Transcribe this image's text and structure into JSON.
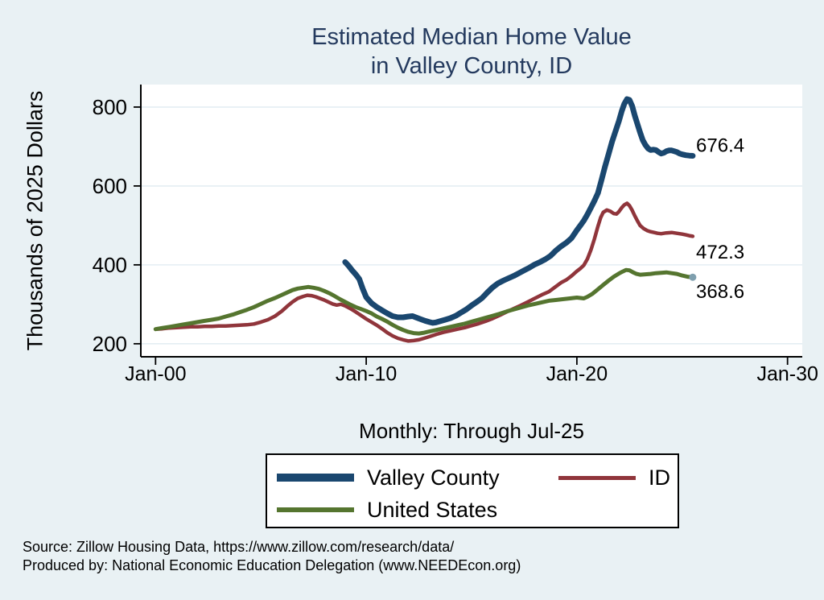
{
  "title": {
    "line1": "Estimated Median Home Value",
    "line2": "in Valley County, ID"
  },
  "y_axis_title": "Thousands of 2025 Dollars",
  "x_axis_title": "Monthly: Through Jul-25",
  "footer": {
    "line1": "Source: Zillow Housing Data, https://www.zillow.com/research/data/",
    "line2": "Produced by: National Economic Education Delegation (www.NEEDEcon.org)"
  },
  "colors": {
    "background": "#e9f1f4",
    "plot_background": "#ffffff",
    "grid": "#e4eef3",
    "title": "#243a5e",
    "valley_county": "#1a476f",
    "id": "#90353b",
    "united_states": "#55752f"
  },
  "chart_data": {
    "type": "line",
    "title": "Estimated Median Home Value in Valley County, ID",
    "xlabel": "Monthly: Through Jul-25",
    "ylabel": "Thousands of 2025 Dollars",
    "xlim": [
      1999.3,
      2030.7
    ],
    "ylim": [
      167,
      857
    ],
    "grid": true,
    "grid_color": "#e4eef3",
    "legend_position": "bottom",
    "x_ticks": [
      {
        "x": 2000,
        "label": "Jan-00"
      },
      {
        "x": 2010,
        "label": "Jan-10"
      },
      {
        "x": 2020,
        "label": "Jan-20"
      },
      {
        "x": 2030,
        "label": "Jan-30"
      }
    ],
    "y_ticks": [
      200,
      400,
      600,
      800
    ],
    "series": [
      {
        "name": "Valley County",
        "color": "#1a476f",
        "width": 7,
        "points": [
          [
            2009.0,
            407
          ],
          [
            2009.17,
            397
          ],
          [
            2009.33,
            386
          ],
          [
            2009.5,
            376
          ],
          [
            2009.67,
            364
          ],
          [
            2009.83,
            340
          ],
          [
            2010.0,
            318
          ],
          [
            2010.25,
            303
          ],
          [
            2010.5,
            293
          ],
          [
            2010.75,
            285
          ],
          [
            2011.0,
            277
          ],
          [
            2011.25,
            270
          ],
          [
            2011.5,
            267
          ],
          [
            2011.75,
            267
          ],
          [
            2012.0,
            269
          ],
          [
            2012.2,
            270
          ],
          [
            2012.4,
            266
          ],
          [
            2012.6,
            262
          ],
          [
            2012.8,
            258
          ],
          [
            2013.0,
            255
          ],
          [
            2013.15,
            253
          ],
          [
            2013.3,
            254
          ],
          [
            2013.5,
            257
          ],
          [
            2013.75,
            261
          ],
          [
            2014.0,
            265
          ],
          [
            2014.25,
            271
          ],
          [
            2014.5,
            279
          ],
          [
            2014.75,
            287
          ],
          [
            2015.0,
            297
          ],
          [
            2015.25,
            306
          ],
          [
            2015.5,
            316
          ],
          [
            2015.75,
            330
          ],
          [
            2016.0,
            343
          ],
          [
            2016.25,
            353
          ],
          [
            2016.5,
            360
          ],
          [
            2016.75,
            366
          ],
          [
            2017.0,
            372
          ],
          [
            2017.25,
            379
          ],
          [
            2017.5,
            386
          ],
          [
            2017.75,
            393
          ],
          [
            2018.0,
            401
          ],
          [
            2018.25,
            407
          ],
          [
            2018.5,
            414
          ],
          [
            2018.75,
            423
          ],
          [
            2019.0,
            436
          ],
          [
            2019.25,
            447
          ],
          [
            2019.5,
            456
          ],
          [
            2019.75,
            468
          ],
          [
            2020.0,
            488
          ],
          [
            2020.17,
            500
          ],
          [
            2020.33,
            512
          ],
          [
            2020.5,
            528
          ],
          [
            2020.67,
            545
          ],
          [
            2020.83,
            562
          ],
          [
            2021.0,
            582
          ],
          [
            2021.17,
            615
          ],
          [
            2021.33,
            648
          ],
          [
            2021.5,
            680
          ],
          [
            2021.67,
            712
          ],
          [
            2021.83,
            738
          ],
          [
            2022.0,
            765
          ],
          [
            2022.13,
            790
          ],
          [
            2022.25,
            808
          ],
          [
            2022.38,
            820
          ],
          [
            2022.5,
            818
          ],
          [
            2022.63,
            802
          ],
          [
            2022.75,
            778
          ],
          [
            2022.88,
            756
          ],
          [
            2023.0,
            736
          ],
          [
            2023.13,
            716
          ],
          [
            2023.25,
            704
          ],
          [
            2023.38,
            695
          ],
          [
            2023.5,
            691
          ],
          [
            2023.63,
            692
          ],
          [
            2023.75,
            691
          ],
          [
            2023.88,
            686
          ],
          [
            2024.0,
            682
          ],
          [
            2024.13,
            684
          ],
          [
            2024.25,
            688
          ],
          [
            2024.38,
            690
          ],
          [
            2024.5,
            690
          ],
          [
            2024.63,
            688
          ],
          [
            2024.75,
            686
          ],
          [
            2024.88,
            682
          ],
          [
            2025.0,
            680
          ],
          [
            2025.17,
            678
          ],
          [
            2025.33,
            677
          ],
          [
            2025.5,
            676.4
          ]
        ]
      },
      {
        "name": "ID",
        "color": "#90353b",
        "width": 4.5,
        "points": [
          [
            2000.0,
            237
          ],
          [
            2000.33,
            238
          ],
          [
            2000.67,
            240
          ],
          [
            2001.0,
            241
          ],
          [
            2001.33,
            242
          ],
          [
            2001.67,
            243
          ],
          [
            2002.0,
            243
          ],
          [
            2002.33,
            244
          ],
          [
            2002.67,
            244
          ],
          [
            2003.0,
            245
          ],
          [
            2003.33,
            245
          ],
          [
            2003.67,
            246
          ],
          [
            2004.0,
            247
          ],
          [
            2004.33,
            248
          ],
          [
            2004.67,
            250
          ],
          [
            2005.0,
            255
          ],
          [
            2005.33,
            261
          ],
          [
            2005.67,
            270
          ],
          [
            2006.0,
            283
          ],
          [
            2006.25,
            295
          ],
          [
            2006.5,
            306
          ],
          [
            2006.75,
            315
          ],
          [
            2007.0,
            320
          ],
          [
            2007.2,
            323
          ],
          [
            2007.4,
            322
          ],
          [
            2007.6,
            319
          ],
          [
            2007.8,
            315
          ],
          [
            2008.0,
            311
          ],
          [
            2008.2,
            306
          ],
          [
            2008.4,
            301
          ],
          [
            2008.6,
            298
          ],
          [
            2008.8,
            300
          ],
          [
            2009.0,
            296
          ],
          [
            2009.25,
            289
          ],
          [
            2009.5,
            281
          ],
          [
            2009.75,
            272
          ],
          [
            2010.0,
            263
          ],
          [
            2010.25,
            255
          ],
          [
            2010.5,
            247
          ],
          [
            2010.75,
            238
          ],
          [
            2011.0,
            228
          ],
          [
            2011.25,
            220
          ],
          [
            2011.5,
            214
          ],
          [
            2011.75,
            210
          ],
          [
            2012.0,
            207
          ],
          [
            2012.25,
            208
          ],
          [
            2012.5,
            210
          ],
          [
            2012.75,
            214
          ],
          [
            2013.0,
            218
          ],
          [
            2013.33,
            224
          ],
          [
            2013.67,
            229
          ],
          [
            2014.0,
            233
          ],
          [
            2014.33,
            237
          ],
          [
            2014.67,
            241
          ],
          [
            2015.0,
            246
          ],
          [
            2015.33,
            251
          ],
          [
            2015.67,
            257
          ],
          [
            2016.0,
            264
          ],
          [
            2016.33,
            272
          ],
          [
            2016.67,
            281
          ],
          [
            2017.0,
            289
          ],
          [
            2017.33,
            297
          ],
          [
            2017.67,
            306
          ],
          [
            2018.0,
            315
          ],
          [
            2018.33,
            324
          ],
          [
            2018.67,
            332
          ],
          [
            2019.0,
            345
          ],
          [
            2019.25,
            355
          ],
          [
            2019.5,
            362
          ],
          [
            2019.75,
            372
          ],
          [
            2020.0,
            384
          ],
          [
            2020.17,
            391
          ],
          [
            2020.33,
            399
          ],
          [
            2020.5,
            415
          ],
          [
            2020.67,
            438
          ],
          [
            2020.83,
            465
          ],
          [
            2021.0,
            498
          ],
          [
            2021.13,
            520
          ],
          [
            2021.25,
            533
          ],
          [
            2021.42,
            539
          ],
          [
            2021.58,
            536
          ],
          [
            2021.75,
            530
          ],
          [
            2021.88,
            529
          ],
          [
            2022.0,
            535
          ],
          [
            2022.13,
            545
          ],
          [
            2022.25,
            552
          ],
          [
            2022.38,
            556
          ],
          [
            2022.5,
            550
          ],
          [
            2022.63,
            538
          ],
          [
            2022.75,
            524
          ],
          [
            2022.88,
            511
          ],
          [
            2023.0,
            500
          ],
          [
            2023.17,
            492
          ],
          [
            2023.33,
            487
          ],
          [
            2023.5,
            484
          ],
          [
            2023.67,
            482
          ],
          [
            2023.83,
            480
          ],
          [
            2024.0,
            479
          ],
          [
            2024.25,
            481
          ],
          [
            2024.5,
            482
          ],
          [
            2024.75,
            480
          ],
          [
            2025.0,
            478
          ],
          [
            2025.17,
            476
          ],
          [
            2025.33,
            474
          ],
          [
            2025.5,
            472.3
          ]
        ]
      },
      {
        "name": "United States",
        "color": "#55752f",
        "width": 5,
        "points": [
          [
            2000.0,
            237
          ],
          [
            2000.33,
            240
          ],
          [
            2000.67,
            243
          ],
          [
            2001.0,
            246
          ],
          [
            2001.33,
            249
          ],
          [
            2001.67,
            252
          ],
          [
            2002.0,
            255
          ],
          [
            2002.33,
            258
          ],
          [
            2002.67,
            261
          ],
          [
            2003.0,
            264
          ],
          [
            2003.33,
            269
          ],
          [
            2003.67,
            274
          ],
          [
            2004.0,
            280
          ],
          [
            2004.33,
            286
          ],
          [
            2004.67,
            293
          ],
          [
            2005.0,
            301
          ],
          [
            2005.33,
            309
          ],
          [
            2005.67,
            316
          ],
          [
            2006.0,
            324
          ],
          [
            2006.25,
            330
          ],
          [
            2006.5,
            336
          ],
          [
            2006.75,
            340
          ],
          [
            2007.0,
            342
          ],
          [
            2007.25,
            344
          ],
          [
            2007.5,
            342
          ],
          [
            2007.75,
            339
          ],
          [
            2008.0,
            334
          ],
          [
            2008.25,
            328
          ],
          [
            2008.5,
            321
          ],
          [
            2008.75,
            313
          ],
          [
            2009.0,
            306
          ],
          [
            2009.25,
            299
          ],
          [
            2009.5,
            293
          ],
          [
            2009.75,
            288
          ],
          [
            2010.0,
            283
          ],
          [
            2010.25,
            277
          ],
          [
            2010.5,
            269
          ],
          [
            2010.75,
            263
          ],
          [
            2011.0,
            256
          ],
          [
            2011.25,
            248
          ],
          [
            2011.5,
            241
          ],
          [
            2011.75,
            235
          ],
          [
            2012.0,
            230
          ],
          [
            2012.25,
            227
          ],
          [
            2012.5,
            226
          ],
          [
            2012.75,
            228
          ],
          [
            2013.0,
            231
          ],
          [
            2013.33,
            235
          ],
          [
            2013.67,
            239
          ],
          [
            2014.0,
            243
          ],
          [
            2014.33,
            247
          ],
          [
            2014.67,
            251
          ],
          [
            2015.0,
            256
          ],
          [
            2015.33,
            261
          ],
          [
            2015.67,
            266
          ],
          [
            2016.0,
            271
          ],
          [
            2016.33,
            276
          ],
          [
            2016.67,
            282
          ],
          [
            2017.0,
            287
          ],
          [
            2017.33,
            292
          ],
          [
            2017.67,
            297
          ],
          [
            2018.0,
            301
          ],
          [
            2018.33,
            305
          ],
          [
            2018.67,
            309
          ],
          [
            2019.0,
            311
          ],
          [
            2019.33,
            313
          ],
          [
            2019.67,
            315
          ],
          [
            2020.0,
            317
          ],
          [
            2020.17,
            316
          ],
          [
            2020.33,
            315
          ],
          [
            2020.5,
            319
          ],
          [
            2020.75,
            327
          ],
          [
            2021.0,
            338
          ],
          [
            2021.25,
            349
          ],
          [
            2021.5,
            360
          ],
          [
            2021.75,
            370
          ],
          [
            2022.0,
            378
          ],
          [
            2022.17,
            383
          ],
          [
            2022.33,
            387
          ],
          [
            2022.5,
            386
          ],
          [
            2022.67,
            381
          ],
          [
            2022.83,
            377
          ],
          [
            2023.0,
            375
          ],
          [
            2023.25,
            376
          ],
          [
            2023.5,
            377
          ],
          [
            2023.75,
            379
          ],
          [
            2024.0,
            380
          ],
          [
            2024.25,
            381
          ],
          [
            2024.5,
            379
          ],
          [
            2024.75,
            377
          ],
          [
            2025.0,
            373
          ],
          [
            2025.25,
            370
          ],
          [
            2025.5,
            368.6
          ]
        ]
      }
    ],
    "annotations": [
      {
        "x": 2025.66,
        "y": 702,
        "text": "676.4"
      },
      {
        "x": 2025.66,
        "y": 431,
        "text": "472.3"
      },
      {
        "x": 2025.66,
        "y": 331,
        "text": "368.6"
      }
    ],
    "end_dot": {
      "x": 2025.5,
      "y": 368.6,
      "color": "#7f9fae"
    }
  }
}
